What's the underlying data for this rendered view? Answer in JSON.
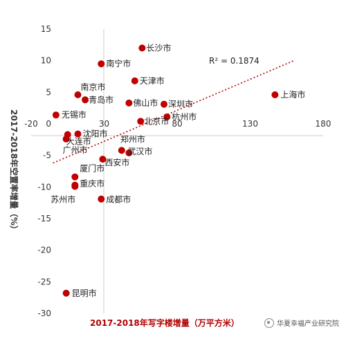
{
  "chart_data": {
    "type": "scatter",
    "title": "",
    "xlabel": "2017-2018年写字楼增量（万平方米）",
    "ylabel": "2017-2018年空置率增量（%）",
    "xlim": [
      -20,
      180
    ],
    "ylim": [
      -30,
      15
    ],
    "xticks": [
      "-20",
      "30",
      "80",
      "130",
      "180"
    ],
    "yticks": [
      "15",
      "10",
      "5",
      "0",
      "-5",
      "-10",
      "-15",
      "-20",
      "-25",
      "-30"
    ],
    "grid": false,
    "trendline": {
      "x": [
        -5,
        160
      ],
      "y": [
        -6.2,
        10
      ],
      "label": "R² = 0.1874",
      "color": "#b00000"
    },
    "marker_color": "#c00000",
    "points": [
      {
        "x": 56,
        "y": 12,
        "label": "长沙市"
      },
      {
        "x": 28,
        "y": 9.5,
        "label": "南宁市"
      },
      {
        "x": 51,
        "y": 6.8,
        "label": "天津市"
      },
      {
        "x": 12,
        "y": 4.6,
        "label": "南京市"
      },
      {
        "x": 17,
        "y": 3.8,
        "label": "青岛市"
      },
      {
        "x": 147,
        "y": 4.6,
        "label": "上海市"
      },
      {
        "x": 47,
        "y": 3.3,
        "label": "佛山市"
      },
      {
        "x": 71,
        "y": 3.1,
        "label": "深圳市"
      },
      {
        "x": 73,
        "y": 1.1,
        "label": "杭州市"
      },
      {
        "x": 55,
        "y": 0.4,
        "label": "北京市"
      },
      {
        "x": -3,
        "y": 1.4,
        "label": "无锡市"
      },
      {
        "x": 12,
        "y": -1.6,
        "label": "沈阳市"
      },
      {
        "x": 5,
        "y": -1.7,
        "label": "大连市"
      },
      {
        "x": 4,
        "y": -2.4,
        "label": "广州市"
      },
      {
        "x": 42,
        "y": -4.2,
        "label": "郑州市"
      },
      {
        "x": 47,
        "y": -4.6,
        "label": "武汉市"
      },
      {
        "x": 29,
        "y": -5.6,
        "label": "西安市"
      },
      {
        "x": 10,
        "y": -8.4,
        "label": "厦门市"
      },
      {
        "x": 10,
        "y": -9.7,
        "label": "重庆市"
      },
      {
        "x": 28,
        "y": -11.9,
        "label": "成都市"
      },
      {
        "x": 10,
        "y": -9.9,
        "label": "苏州市"
      },
      {
        "x": 4,
        "y": -26.8,
        "label": "昆明市"
      }
    ]
  },
  "watermark": {
    "text": "华夏幸福产业研究院",
    "icon": "wechat-icon"
  }
}
